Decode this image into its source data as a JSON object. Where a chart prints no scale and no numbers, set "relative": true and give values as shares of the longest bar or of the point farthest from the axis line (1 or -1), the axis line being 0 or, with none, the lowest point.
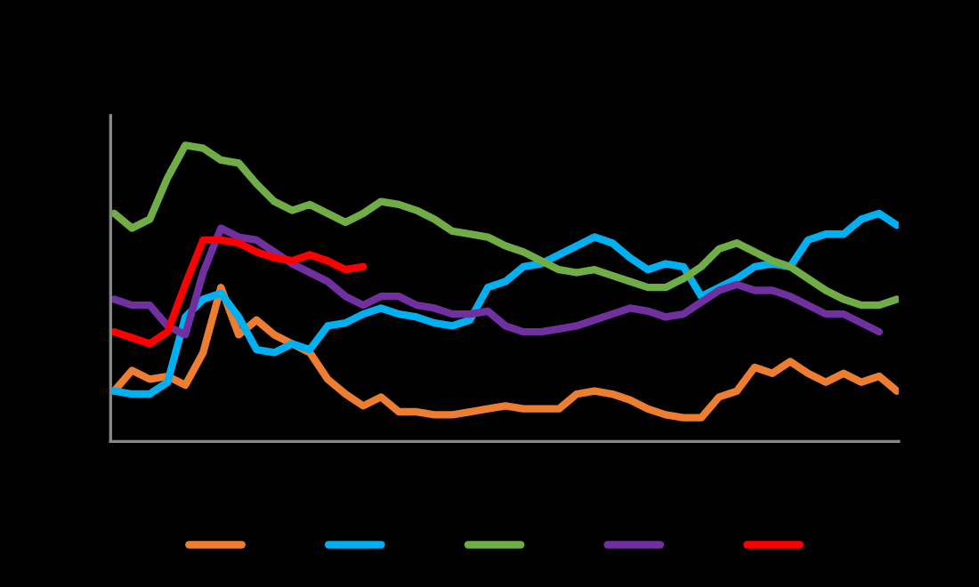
{
  "chart_data": {
    "type": "line",
    "relative": true,
    "grid": false,
    "marker": "none",
    "line_style": "solid",
    "categories": [
      null,
      null,
      null,
      null,
      null,
      null,
      null,
      null,
      null,
      null,
      null,
      null,
      null,
      null,
      null,
      null,
      null,
      null,
      null,
      null,
      null,
      null,
      null,
      null,
      null,
      null,
      null,
      null,
      null,
      null,
      null,
      null,
      null,
      null,
      null,
      null,
      null,
      null,
      null,
      null,
      null,
      null,
      null,
      null,
      null
    ],
    "series": [
      {
        "color": "#ed7d31",
        "values": [
          0.17,
          0.24,
          0.21,
          0.22,
          0.19,
          0.3,
          0.52,
          0.36,
          0.41,
          0.36,
          0.33,
          0.3,
          0.21,
          0.16,
          0.12,
          0.15,
          0.1,
          0.1,
          0.09,
          0.09,
          0.1,
          0.11,
          0.12,
          0.11,
          0.11,
          0.11,
          0.16,
          0.17,
          0.16,
          0.14,
          0.11,
          0.09,
          0.08,
          0.08,
          0.15,
          0.17,
          0.25,
          0.23,
          0.27,
          0.23,
          0.2,
          0.23,
          0.2,
          0.22,
          0.17
        ]
      },
      {
        "color": "#00b0f0",
        "values": [
          0.17,
          0.16,
          0.16,
          0.2,
          0.42,
          0.48,
          0.5,
          0.42,
          0.31,
          0.3,
          0.33,
          0.31,
          0.39,
          0.4,
          0.43,
          0.45,
          0.43,
          0.42,
          0.4,
          0.39,
          0.41,
          0.52,
          0.54,
          0.59,
          0.6,
          0.63,
          0.66,
          0.69,
          0.67,
          0.62,
          0.58,
          0.6,
          0.59,
          0.49,
          0.52,
          0.55,
          0.59,
          0.6,
          0.59,
          0.68,
          0.7,
          0.7,
          0.75,
          0.77,
          0.73
        ]
      },
      {
        "color": "#70ad47",
        "values": [
          0.77,
          0.72,
          0.75,
          0.89,
          1.0,
          0.99,
          0.95,
          0.94,
          0.87,
          0.81,
          0.78,
          0.8,
          0.77,
          0.74,
          0.77,
          0.81,
          0.8,
          0.78,
          0.75,
          0.71,
          0.7,
          0.69,
          0.66,
          0.64,
          0.61,
          0.58,
          0.57,
          0.58,
          0.56,
          0.54,
          0.52,
          0.52,
          0.55,
          0.59,
          0.65,
          0.67,
          0.64,
          0.61,
          0.59,
          0.55,
          0.51,
          0.48,
          0.46,
          0.46,
          0.48
        ]
      },
      {
        "color": "#7030a0",
        "values": [
          0.48,
          0.46,
          0.46,
          0.39,
          0.36,
          0.57,
          0.72,
          0.69,
          0.68,
          0.64,
          0.6,
          0.57,
          0.54,
          0.49,
          0.46,
          0.49,
          0.49,
          0.46,
          0.45,
          0.43,
          0.43,
          0.44,
          0.39,
          0.37,
          0.37,
          0.38,
          0.39,
          0.41,
          0.43,
          0.45,
          0.44,
          0.42,
          0.43,
          0.47,
          0.51,
          0.53,
          0.51,
          0.51,
          0.49,
          0.46,
          0.43,
          0.43,
          0.4,
          0.37,
          null
        ]
      },
      {
        "color": "#ff0000",
        "values": [
          0.37,
          0.35,
          0.33,
          0.37,
          0.53,
          0.68,
          0.68,
          0.67,
          0.64,
          0.62,
          0.61,
          0.63,
          0.61,
          0.58,
          0.59,
          null,
          null,
          null,
          null,
          null,
          null,
          null,
          null,
          null,
          null,
          null,
          null,
          null,
          null,
          null,
          null,
          null,
          null,
          null,
          null,
          null,
          null,
          null,
          null,
          null,
          null,
          null,
          null,
          null,
          null
        ]
      }
    ]
  }
}
